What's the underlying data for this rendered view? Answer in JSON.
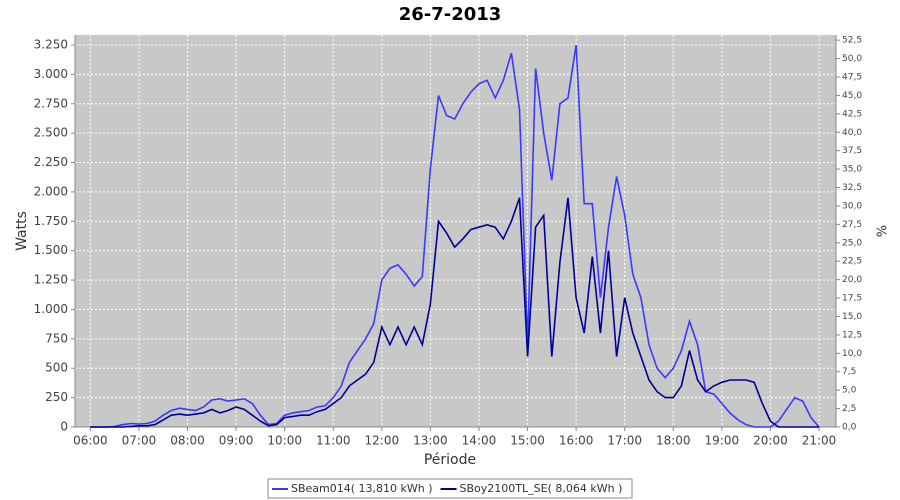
{
  "chart_data": {
    "type": "line",
    "title": "26-7-2013",
    "x_label": "Période",
    "y_label": "Watts",
    "y2_label": "%",
    "x": [
      360,
      370,
      380,
      390,
      400,
      410,
      420,
      430,
      440,
      450,
      460,
      470,
      480,
      490,
      500,
      510,
      520,
      530,
      540,
      550,
      560,
      570,
      580,
      590,
      600,
      610,
      620,
      630,
      640,
      650,
      660,
      670,
      680,
      690,
      700,
      710,
      720,
      730,
      740,
      750,
      760,
      770,
      780,
      790,
      800,
      810,
      820,
      830,
      840,
      850,
      860,
      870,
      880,
      890,
      900,
      910,
      920,
      930,
      940,
      950,
      960,
      970,
      980,
      990,
      1000,
      1010,
      1020,
      1030,
      1040,
      1050,
      1060,
      1070,
      1080,
      1090,
      1100,
      1110,
      1120,
      1130,
      1140,
      1150,
      1160,
      1170,
      1180,
      1190,
      1200,
      1210,
      1220,
      1230,
      1240,
      1250,
      1260
    ],
    "series": [
      {
        "name": "SBeam014( 13,810 kWh )",
        "color": "#3a3aff",
        "values": [
          0,
          0,
          0,
          5,
          20,
          30,
          25,
          30,
          50,
          100,
          140,
          160,
          150,
          140,
          170,
          230,
          240,
          220,
          230,
          240,
          200,
          100,
          20,
          30,
          100,
          120,
          130,
          140,
          170,
          180,
          250,
          350,
          550,
          650,
          750,
          880,
          1250,
          1350,
          1380,
          1300,
          1200,
          1280,
          2200,
          2820,
          2650,
          2620,
          2750,
          2850,
          2920,
          2950,
          2800,
          2950,
          3180,
          2700,
          700,
          3050,
          2500,
          2100,
          2750,
          2800,
          3250,
          1900,
          1900,
          1100,
          1700,
          2130,
          1800,
          1300,
          1100,
          700,
          500,
          420,
          500,
          650,
          900,
          700,
          300,
          280,
          200,
          120,
          60,
          20,
          0,
          0,
          0,
          50,
          150,
          250,
          220,
          80,
          0
        ]
      },
      {
        "name": "SBoy2100TL_SE( 8,064 kWh )",
        "color": "#000099",
        "values": [
          0,
          0,
          0,
          0,
          0,
          5,
          10,
          10,
          20,
          60,
          100,
          110,
          100,
          110,
          120,
          150,
          120,
          140,
          170,
          150,
          100,
          50,
          10,
          20,
          80,
          90,
          100,
          100,
          130,
          150,
          200,
          250,
          350,
          400,
          450,
          550,
          850,
          700,
          850,
          700,
          850,
          700,
          1050,
          1750,
          1650,
          1530,
          1600,
          1680,
          1700,
          1720,
          1700,
          1600,
          1750,
          1950,
          600,
          1700,
          1800,
          600,
          1400,
          1950,
          1100,
          800,
          1450,
          800,
          1500,
          600,
          1100,
          800,
          600,
          400,
          300,
          250,
          250,
          350,
          650,
          400,
          300,
          350,
          380,
          400,
          400,
          400,
          380,
          200,
          50,
          0,
          0,
          0,
          0,
          0,
          0
        ]
      }
    ],
    "xlim": [
      341,
      1281
    ],
    "xticks": [
      {
        "value": 360,
        "label": "06:00"
      },
      {
        "value": 420,
        "label": "07:00"
      },
      {
        "value": 480,
        "label": "08:00"
      },
      {
        "value": 540,
        "label": "09:00"
      },
      {
        "value": 600,
        "label": "10:00"
      },
      {
        "value": 660,
        "label": "11:00"
      },
      {
        "value": 720,
        "label": "12:00"
      },
      {
        "value": 780,
        "label": "13:00"
      },
      {
        "value": 840,
        "label": "14:00"
      },
      {
        "value": 900,
        "label": "15:00"
      },
      {
        "value": 960,
        "label": "16:00"
      },
      {
        "value": 1020,
        "label": "17:00"
      },
      {
        "value": 1080,
        "label": "18:00"
      },
      {
        "value": 1140,
        "label": "19:00"
      },
      {
        "value": 1200,
        "label": "20:00"
      },
      {
        "value": 1260,
        "label": "21:00"
      }
    ],
    "ylim": [
      0,
      3335
    ],
    "yticks": [
      0,
      250,
      500,
      750,
      {
        "value": 1000,
        "label": "1.000"
      },
      {
        "value": 1250,
        "label": "1.250"
      },
      {
        "value": 1500,
        "label": "1.500"
      },
      {
        "value": 1750,
        "label": "1.750"
      },
      {
        "value": 2000,
        "label": "2.000"
      },
      {
        "value": 2250,
        "label": "2.250"
      },
      {
        "value": 2500,
        "label": "2.500"
      },
      {
        "value": 2750,
        "label": "2.750"
      },
      {
        "value": 3000,
        "label": "3.000"
      },
      {
        "value": 3250,
        "label": "3.250"
      }
    ],
    "y2lim": [
      0,
      53.2
    ],
    "y2ticks": [
      {
        "value": 0,
        "label": "0,0"
      },
      {
        "value": 2.5,
        "label": "2,5"
      },
      {
        "value": 5,
        "label": "5,0"
      },
      {
        "value": 7.5,
        "label": "7,5"
      },
      {
        "value": 10,
        "label": "10,0"
      },
      {
        "value": 12.5,
        "label": "12,5"
      },
      {
        "value": 15,
        "label": "15,0"
      },
      {
        "value": 17.5,
        "label": "17,5"
      },
      {
        "value": 20,
        "label": "20,0"
      },
      {
        "value": 22.5,
        "label": "22,5"
      },
      {
        "value": 25,
        "label": "25,0"
      },
      {
        "value": 27.5,
        "label": "27,5"
      },
      {
        "value": 30,
        "label": "30,0"
      },
      {
        "value": 32.5,
        "label": "32,5"
      },
      {
        "value": 35,
        "label": "35,0"
      },
      {
        "value": 37.5,
        "label": "37,5"
      },
      {
        "value": 40,
        "label": "40,0"
      },
      {
        "value": 42.5,
        "label": "42,5"
      },
      {
        "value": 45,
        "label": "45,0"
      },
      {
        "value": 47.5,
        "label": "47,5"
      },
      {
        "value": 50,
        "label": "50,0"
      },
      {
        "value": 52.5,
        "label": "52,5"
      }
    ],
    "grid": true,
    "legend": "bottom"
  }
}
